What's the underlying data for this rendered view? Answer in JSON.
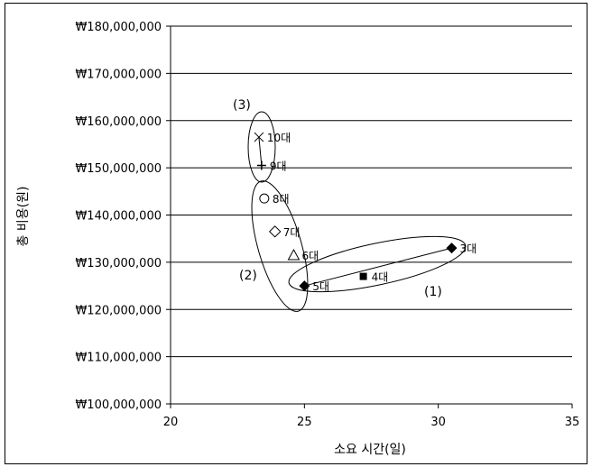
{
  "chart_data": {
    "type": "scatter",
    "xlabel": "소요 시간(일)",
    "ylabel": "총 비용(원)",
    "xlim": [
      20,
      35
    ],
    "ylim": [
      100000000,
      180000000
    ],
    "x_ticks": [
      "20",
      "25",
      "30",
      "35"
    ],
    "y_ticks": [
      "₩100,000,000",
      "₩110,000,000",
      "₩120,000,000",
      "₩130,000,000",
      "₩140,000,000",
      "₩150,000,000",
      "₩160,000,000",
      "₩170,000,000",
      "₩180,000,000"
    ],
    "grid": "horizontal",
    "points": [
      {
        "label": "3대",
        "x": 30.5,
        "y": 133000000,
        "marker": "diamond-filled"
      },
      {
        "label": "4대",
        "x": 27.2,
        "y": 127000000,
        "marker": "square-filled"
      },
      {
        "label": "5대",
        "x": 25.0,
        "y": 125000000,
        "marker": "diamond-filled"
      },
      {
        "label": "6대",
        "x": 24.6,
        "y": 131500000,
        "marker": "triangle-open"
      },
      {
        "label": "7대",
        "x": 23.9,
        "y": 136500000,
        "marker": "diamond-open"
      },
      {
        "label": "8대",
        "x": 23.5,
        "y": 143500000,
        "marker": "circle-open"
      },
      {
        "label": "9대",
        "x": 23.4,
        "y": 150500000,
        "marker": "plus"
      },
      {
        "label": "10대",
        "x": 23.3,
        "y": 156500000,
        "marker": "x"
      }
    ],
    "groups": [
      {
        "label": "(1)",
        "members": [
          "3대",
          "4대",
          "5대"
        ]
      },
      {
        "label": "(2)",
        "members": [
          "5대",
          "6대",
          "7대",
          "8대"
        ]
      },
      {
        "label": "(3)",
        "members": [
          "9대",
          "10대"
        ]
      }
    ]
  }
}
